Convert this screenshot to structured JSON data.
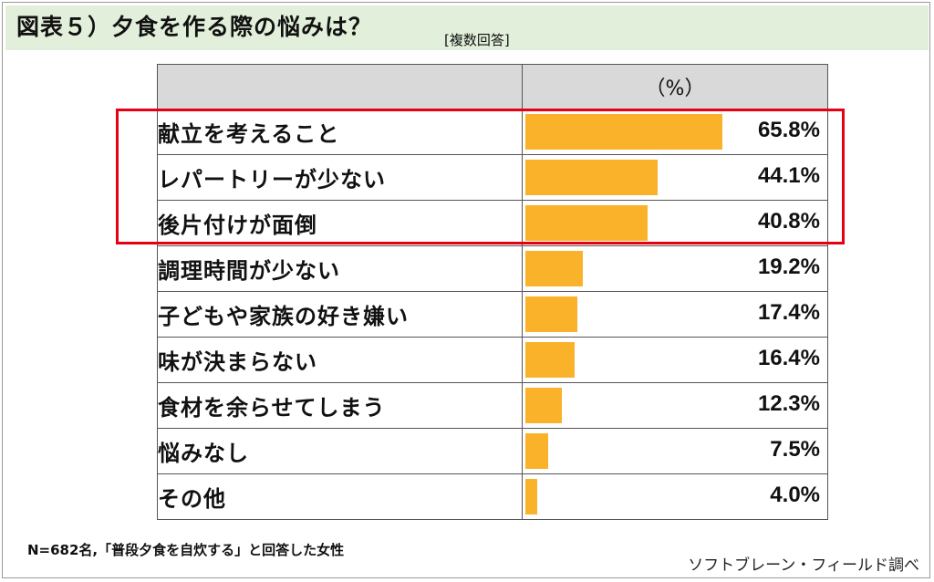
{
  "title": "図表５）夕食を作る際の悩みは？",
  "subtitle": "[複数回答]",
  "colors": {
    "bar": "#fbb22b",
    "header_bg": "#d9d9d9",
    "title_bg": "#e2efda",
    "highlight": "#e60012"
  },
  "chart_data": {
    "type": "bar",
    "title": "図表５）夕食を作る際の悩みは？",
    "subtitle": "[複数回答]",
    "unit_header": "（%）",
    "categories": [
      "献立を考えること",
      "レパートリーが少ない",
      "後片付けが面倒",
      "調理時間が少ない",
      "子どもや家族の好き嫌い",
      "味が決まらない",
      "食材を余らせてしまう",
      "悩みなし",
      "その他"
    ],
    "values": [
      65.8,
      44.1,
      40.8,
      19.2,
      17.4,
      16.4,
      12.3,
      7.5,
      4.0
    ],
    "value_labels": [
      "65.8%",
      "44.1%",
      "40.8%",
      "19.2%",
      "17.4%",
      "16.4%",
      "12.3%",
      "7.5%",
      "4.0%"
    ],
    "xlim": [
      0,
      100
    ],
    "orientation": "horizontal",
    "highlighted_categories": [
      "献立を考えること",
      "レパートリーが少ない",
      "後片付けが面倒"
    ]
  },
  "footnote": "N=682名,「普段夕食を自炊する」と回答した女性",
  "source": "ソフトブレーン・フィールド調べ"
}
